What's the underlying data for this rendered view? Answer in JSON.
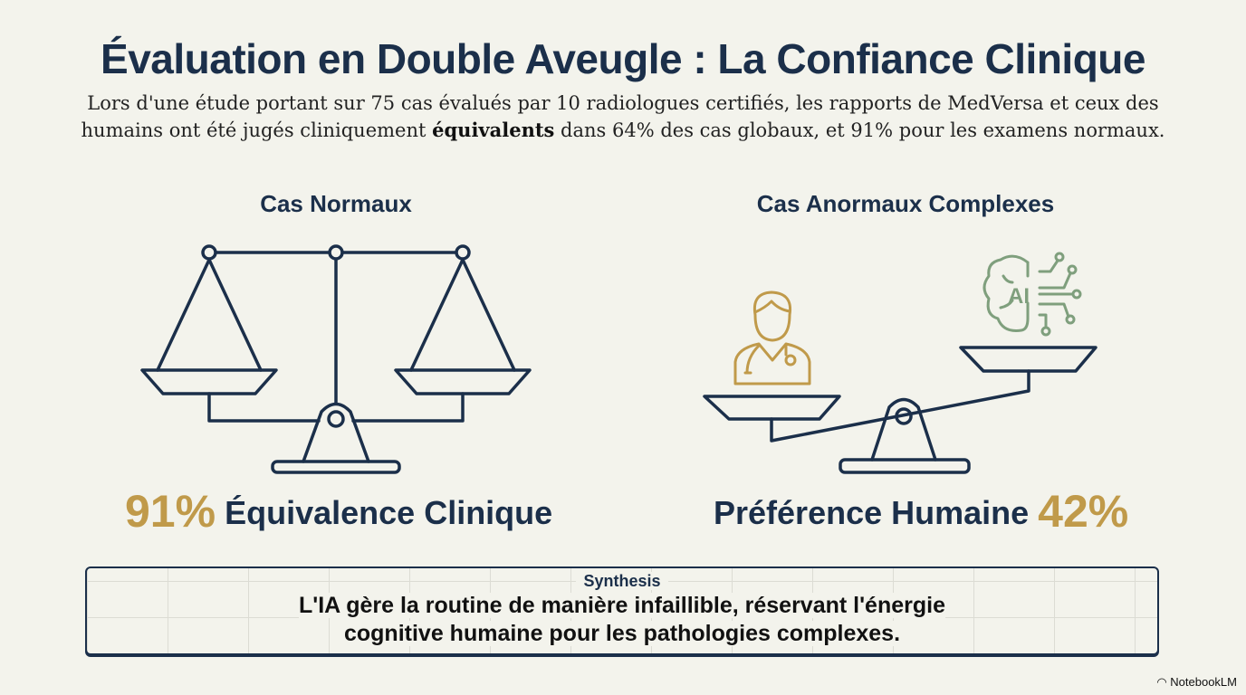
{
  "title": "Évaluation en Double Aveugle : La Confiance Clinique",
  "subtitle": {
    "before": "Lors d'une étude portant sur 75 cas évalués par 10 radiologues certifiés, les rapports de MedVersa et ceux des humains ont été jugés cliniquement ",
    "bold": "équivalents",
    "after": " dans 64% des cas globaux, et 91% pour les examens normaux."
  },
  "left": {
    "heading": "Cas Normaux",
    "value": "91%",
    "label": "Équivalence Clinique",
    "icon": "balanced-scale-icon"
  },
  "right": {
    "heading": "Cas Anormaux Complexes",
    "label": "Préférence Humaine",
    "value": "42%",
    "icons": [
      "doctor-icon",
      "ai-brain-icon",
      "tilted-scale-icon"
    ],
    "ai_text": "AI"
  },
  "synthesis": {
    "label": "Synthesis",
    "line1": "L'IA gère la routine de manière infaillible, réservant l'énergie",
    "line2": "cognitive humaine pour les pathologies complexes."
  },
  "brand": "NotebookLM",
  "colors": {
    "navy": "#1b2f4a",
    "gold": "#c09a4a",
    "green": "#7f9f7d",
    "background": "#f3f3ec"
  }
}
